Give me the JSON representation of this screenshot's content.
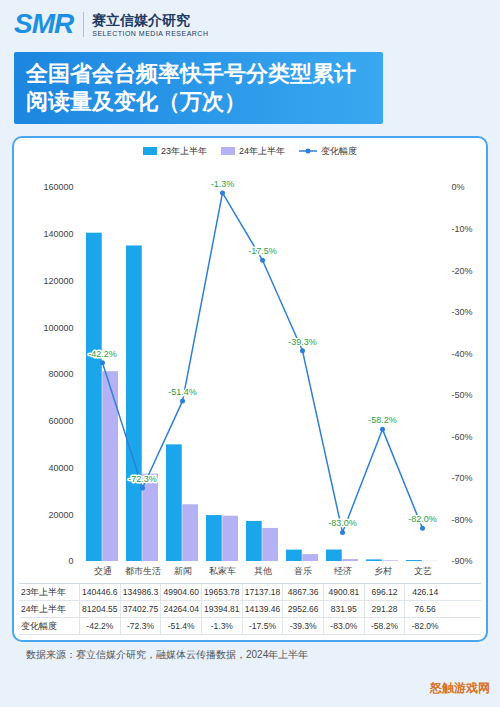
{
  "header": {
    "logo": "SMR",
    "name": "赛立信媒介研究",
    "name_en": "SELECTION MEDIA RESEARCH"
  },
  "chart_data": {
    "type": "bar",
    "title": "全国省会台频率快手号分类型累计阅读量及变化（万次）",
    "categories": [
      "交通",
      "都市生活",
      "新闻",
      "私家车",
      "其他",
      "音乐",
      "经济",
      "乡村",
      "文艺"
    ],
    "series": [
      {
        "name": "23年上半年",
        "type": "bar",
        "color": "#1ba5ea",
        "data_labels": true,
        "values": [
          140446.6,
          134986.3,
          49904.6,
          19653.78,
          17137.18,
          4867.36,
          4900.81,
          696.12,
          426.14
        ],
        "value_labels": [
          "140446.6",
          "134986.3",
          "49904.60",
          "19653.78",
          "17137.18",
          "4867.36",
          "4900.81",
          "696.12",
          "426.14"
        ]
      },
      {
        "name": "24年上半年",
        "type": "bar",
        "color": "#b4b1f4",
        "data_labels": true,
        "values": [
          81204.55,
          37402.75,
          24264.04,
          19394.81,
          14139.46,
          2952.66,
          831.95,
          291.28,
          76.56
        ],
        "value_labels": [
          "81204.55",
          "37402.75",
          "24264.04",
          "19394.81",
          "14139.46",
          "2952.66",
          "831.95",
          "291.28",
          "76.56"
        ]
      },
      {
        "name": "变化幅度",
        "type": "line",
        "axis": "y2",
        "color": "#2f7fd8",
        "marker": "circle",
        "data_labels": true,
        "values": [
          -42.2,
          -72.3,
          -51.4,
          -1.3,
          -17.5,
          -39.3,
          -83.0,
          -58.2,
          -82.0
        ],
        "value_labels": [
          "-42.2%",
          "-72.3%",
          "-51.4%",
          "-1.3%",
          "-17.5%",
          "-39.3%",
          "-83.0%",
          "-58.2%",
          "-82.0%"
        ]
      }
    ],
    "ylim": [
      0,
      160000
    ],
    "yticks": [
      0,
      20000,
      40000,
      60000,
      80000,
      100000,
      120000,
      140000,
      160000
    ],
    "y2lim": [
      -90,
      0
    ],
    "y2ticks": [
      {
        "value": 0,
        "label": "0%"
      },
      {
        "value": -10,
        "label": "-10%"
      },
      {
        "value": -20,
        "label": "-20%"
      },
      {
        "value": -30,
        "label": "-30%"
      },
      {
        "value": -40,
        "label": "-40%"
      },
      {
        "value": -50,
        "label": "-50%"
      },
      {
        "value": -60,
        "label": "-60%"
      },
      {
        "value": -70,
        "label": "-70%"
      },
      {
        "value": -80,
        "label": "-80%"
      },
      {
        "value": -90,
        "label": "-90%"
      }
    ],
    "legend": "top",
    "grid": false
  },
  "source": "数据来源：赛立信媒介研究，融媒体云传播数据，2024年上半年",
  "watermark": "怒触游戏网"
}
